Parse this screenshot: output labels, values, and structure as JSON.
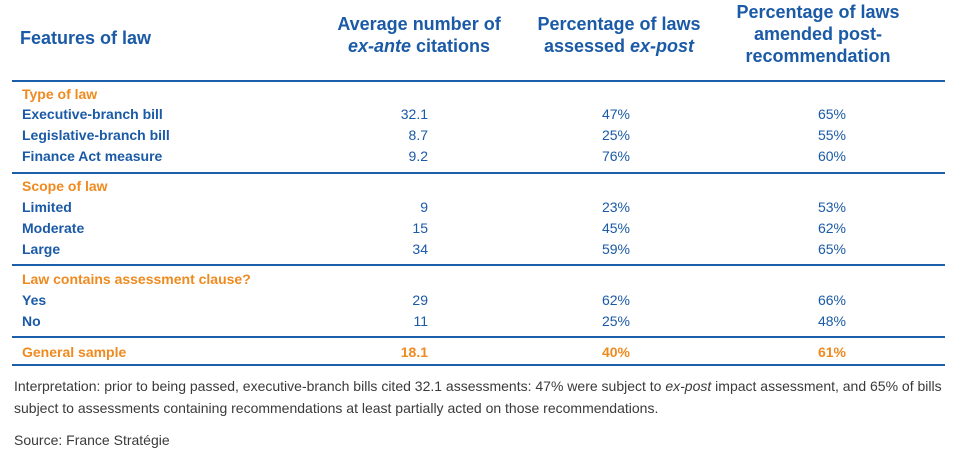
{
  "header": {
    "features": "Features of law",
    "col1_line1": "Average number of",
    "col1_line2_italic": "ex-ante",
    "col1_line2_rest": " citations",
    "col2_line1": "Percentage of laws",
    "col2_line2_prefix": "assessed ",
    "col2_line2_italic": "ex-post",
    "col3_line1": "Percentage of laws",
    "col3_line2": "amended post-",
    "col3_line3": "recommendation"
  },
  "sections": [
    {
      "title": "Type of law",
      "rows": [
        {
          "label": "Executive-branch bill",
          "citations": "32.1",
          "assessed": "47%",
          "amended": "65%"
        },
        {
          "label": "Legislative-branch bill",
          "citations": "8.7",
          "assessed": "25%",
          "amended": "55%"
        },
        {
          "label": "Finance Act measure",
          "citations": "9.2",
          "assessed": "76%",
          "amended": "60%"
        }
      ]
    },
    {
      "title": "Scope of law",
      "rows": [
        {
          "label": "Limited",
          "citations": "9",
          "assessed": "23%",
          "amended": "53%"
        },
        {
          "label": "Moderate",
          "citations": "15",
          "assessed": "45%",
          "amended": "62%"
        },
        {
          "label": "Large",
          "citations": "34",
          "assessed": "59%",
          "amended": "65%"
        }
      ]
    },
    {
      "title": "Law contains assessment clause?",
      "rows": [
        {
          "label": "Yes",
          "citations": "29",
          "assessed": "62%",
          "amended": "66%"
        },
        {
          "label": "No",
          "citations": "11",
          "assessed": "25%",
          "amended": "48%"
        }
      ]
    }
  ],
  "general": {
    "label": "General sample",
    "citations": "18.1",
    "assessed": "40%",
    "amended": "61%"
  },
  "note": {
    "part1": "Interpretation: prior to being passed, executive-branch bills cited 32.1 assessments: 47% were subject to ",
    "italic": "ex-post",
    "part2": " impact assessment, and 65% of bills subject to assessments containing recommendations at least partially acted on those recommendations."
  },
  "source": "Source: France Stratégie",
  "colors": {
    "blue": "#1a5aa6",
    "orange": "#ef8a1f",
    "text": "#3a3a3a"
  }
}
